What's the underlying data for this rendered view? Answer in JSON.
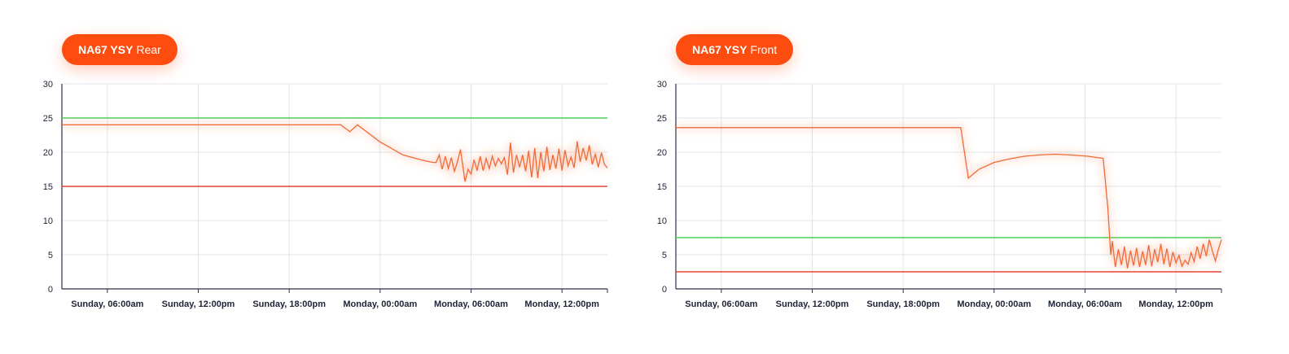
{
  "colors": {
    "accent": "#fc4c10",
    "upper_threshold": "#4cd15a",
    "lower_threshold": "#ea4335",
    "series": "#f06a35",
    "grid": "#e3e3e8",
    "axis": "#2c2f4a"
  },
  "charts": [
    {
      "vehicle": {
        "registration": "NA67 YSY",
        "position": "Rear"
      }
    },
    {
      "vehicle": {
        "registration": "NA67 YSY",
        "position": "Front"
      }
    }
  ],
  "chart_data": [
    {
      "type": "line",
      "title": "",
      "xlabel": "",
      "ylabel": "",
      "ylim": [
        0,
        30
      ],
      "yticks": [
        0,
        5,
        10,
        15,
        20,
        25,
        30
      ],
      "xlim": [
        3,
        39
      ],
      "x_unit": "hours since Sunday 00:00am",
      "xtick_labels": [
        "Sunday, 06:00am",
        "Sunday, 12:00pm",
        "Sunday, 18:00pm",
        "Monday, 00:00am",
        "Monday, 06:00am",
        "Monday, 12:00pm"
      ],
      "grid": true,
      "thresholds": {
        "upper": 25,
        "lower": 15
      },
      "series": [
        {
          "x": [
            3,
            21.4,
            22.0,
            22.5,
            24.0,
            25.5,
            27.0,
            27.5,
            27.7,
            27.9,
            28.1,
            28.3,
            28.5,
            28.7,
            28.9,
            29.1,
            29.3,
            29.6,
            29.8,
            30.0,
            30.2,
            30.4,
            30.6,
            30.8,
            31.0,
            31.2,
            31.4,
            31.6,
            31.8,
            32.0,
            32.2,
            32.4,
            32.6,
            32.8,
            33.0,
            33.2,
            33.4,
            33.6,
            33.8,
            34.0,
            34.2,
            34.4,
            34.6,
            34.8,
            35.0,
            35.2,
            35.4,
            35.6,
            35.8,
            36.0,
            36.2,
            36.4,
            36.6,
            36.8,
            37.0,
            37.2,
            37.4,
            37.6,
            37.8,
            38.0,
            38.2,
            38.4,
            38.6,
            38.8,
            39.0
          ],
          "y": [
            24.0,
            24.0,
            23.0,
            24.0,
            21.5,
            19.6,
            18.7,
            18.5,
            18.5,
            19.6,
            17.5,
            19.4,
            17.6,
            19.2,
            17.2,
            18.6,
            20.4,
            15.7,
            17.5,
            16.8,
            18.9,
            17.3,
            19.4,
            17.3,
            19.1,
            17.6,
            19.4,
            18.0,
            19.1,
            18.3,
            19.2,
            16.7,
            21.4,
            17.0,
            19.6,
            17.8,
            19.6,
            17.2,
            20.2,
            16.3,
            20.6,
            16.2,
            20.0,
            17.2,
            20.8,
            17.4,
            19.6,
            17.6,
            20.5,
            17.3,
            20.3,
            18.0,
            19.3,
            17.7,
            21.6,
            18.6,
            20.6,
            18.8,
            21.0,
            18.2,
            19.7,
            17.8,
            19.9,
            18.2,
            17.7
          ]
        }
      ]
    },
    {
      "type": "line",
      "title": "",
      "xlabel": "",
      "ylabel": "",
      "ylim": [
        0,
        30
      ],
      "yticks": [
        0,
        5,
        10,
        15,
        20,
        25,
        30
      ],
      "xlim": [
        3,
        39
      ],
      "x_unit": "hours since Sunday 00:00am",
      "xtick_labels": [
        "Sunday, 06:00am",
        "Sunday, 12:00pm",
        "Sunday, 18:00pm",
        "Monday, 00:00am",
        "Monday, 06:00am",
        "Monday, 12:00pm"
      ],
      "grid": true,
      "thresholds": {
        "upper": 7.5,
        "lower": 2.5
      },
      "series": [
        {
          "x": [
            3,
            21.5,
            21.8,
            22.3,
            23.0,
            24.0,
            25.0,
            26.0,
            27.0,
            28.0,
            29.0,
            30.2,
            31.2,
            31.5,
            31.7,
            31.8,
            32.0,
            32.2,
            32.4,
            32.6,
            32.8,
            33.0,
            33.2,
            33.4,
            33.6,
            33.8,
            34.0,
            34.2,
            34.4,
            34.6,
            34.8,
            35.0,
            35.2,
            35.4,
            35.6,
            35.8,
            36.0,
            36.2,
            36.4,
            36.6,
            36.8,
            37.0,
            37.2,
            37.4,
            37.6,
            37.8,
            38.0,
            38.2,
            38.4,
            38.6,
            38.8,
            39.0
          ],
          "y": [
            23.6,
            23.6,
            23.6,
            16.2,
            17.5,
            18.5,
            19.0,
            19.4,
            19.6,
            19.7,
            19.6,
            19.4,
            19.1,
            12.0,
            5.0,
            7.0,
            3.2,
            5.8,
            3.5,
            6.2,
            3.0,
            5.6,
            3.4,
            6.0,
            3.2,
            5.5,
            3.5,
            6.4,
            3.3,
            5.8,
            3.9,
            6.6,
            3.6,
            5.9,
            3.2,
            5.4,
            3.8,
            4.9,
            3.3,
            4.2,
            3.6,
            5.3,
            4.0,
            6.2,
            4.4,
            6.6,
            4.8,
            7.2,
            5.6,
            4.1,
            5.8,
            7.2
          ]
        }
      ]
    }
  ]
}
